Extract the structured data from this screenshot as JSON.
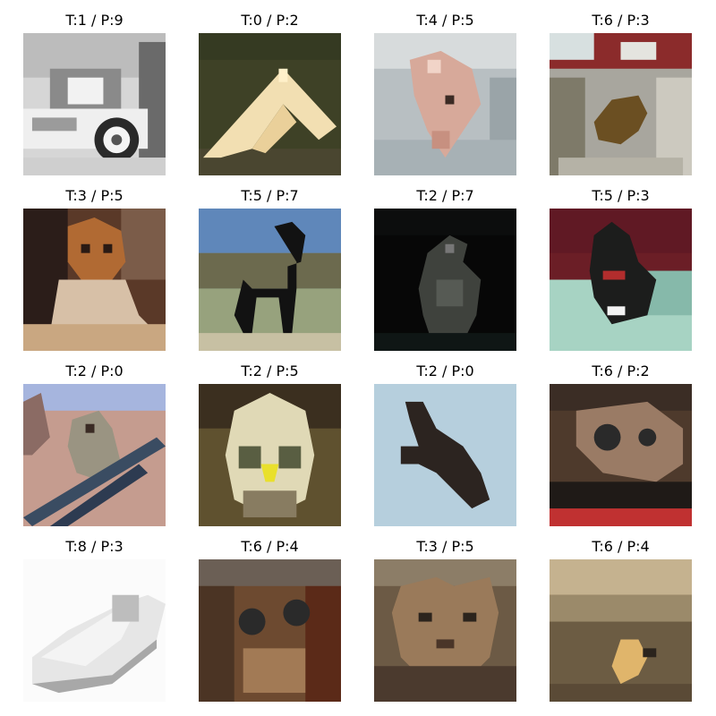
{
  "grid": {
    "panels": [
      {
        "title": "T:1 / P:9",
        "subject": "vintage-car",
        "bg": "#d4d4d4"
      },
      {
        "title": "T:0 / P:2",
        "subject": "airplane-delta",
        "bg": "#3f4126"
      },
      {
        "title": "T:4 / P:5",
        "subject": "deer",
        "bg": "#b9c0c2"
      },
      {
        "title": "T:6 / P:3",
        "subject": "frog",
        "bg": "#a9a59c"
      },
      {
        "title": "T:3 / P:5",
        "subject": "cat",
        "bg": "#5b3a28"
      },
      {
        "title": "T:5 / P:7",
        "subject": "dog-black",
        "bg": "#6f8f9b"
      },
      {
        "title": "T:2 / P:7",
        "subject": "bird-dark",
        "bg": "#0a0a0b"
      },
      {
        "title": "T:5 / P:3",
        "subject": "dog-puppy",
        "bg": "#6d1e25"
      },
      {
        "title": "T:2 / P:0",
        "subject": "bird-on-branch",
        "bg": "#c79a8d"
      },
      {
        "title": "T:2 / P:5",
        "subject": "owl",
        "bg": "#5c4e2e"
      },
      {
        "title": "T:2 / P:0",
        "subject": "bird-silhouette-sky",
        "bg": "#b6cfdd"
      },
      {
        "title": "T:6 / P:2",
        "subject": "frog-closeup",
        "bg": "#4f3a2c"
      },
      {
        "title": "T:8 / P:3",
        "subject": "boat",
        "bg": "#f5f5f5"
      },
      {
        "title": "T:6 / P:4",
        "subject": "frog-face",
        "bg": "#6e4a30"
      },
      {
        "title": "T:3 / P:5",
        "subject": "cat-face",
        "bg": "#6d5a45"
      },
      {
        "title": "T:6 / P:4",
        "subject": "frog-small",
        "bg": "#6c5c43"
      }
    ]
  }
}
